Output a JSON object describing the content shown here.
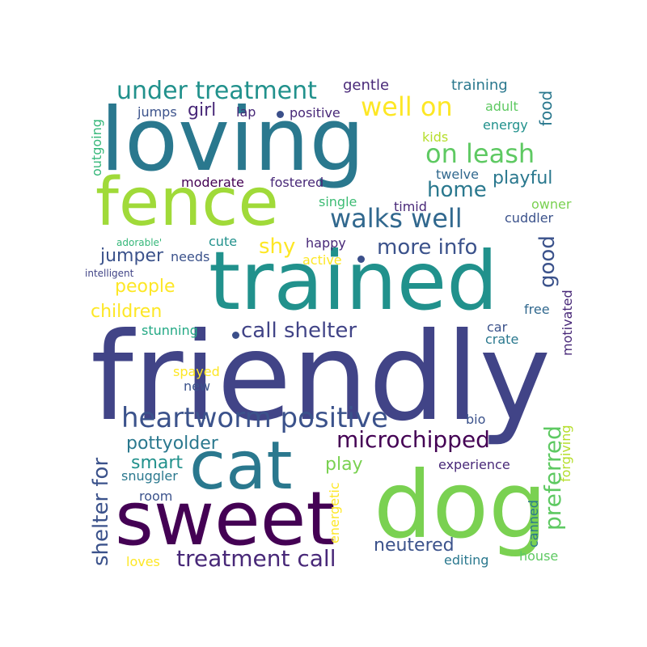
{
  "palette": {
    "dark_purple": "#440154",
    "indigo": "#414487",
    "blue": "#2a788e",
    "teal": "#22a884",
    "green": "#7ad151",
    "yellow": "#fde725"
  },
  "words": [
    {
      "id": "friendly",
      "text": "friendly",
      "color": "#414487",
      "rot": 0
    },
    {
      "id": "loving",
      "text": "loving",
      "color": "#2a788e",
      "rot": 0
    },
    {
      "id": "trained",
      "text": "trained",
      "color": "#21918c",
      "rot": 0
    },
    {
      "id": "fence",
      "text": "fence",
      "color": "#a0da39",
      "rot": 0
    },
    {
      "id": "dog",
      "text": "dog",
      "color": "#7ad151",
      "rot": 0
    },
    {
      "id": "sweet",
      "text": "sweet",
      "color": "#440154",
      "rot": 0
    },
    {
      "id": "cat",
      "text": "cat",
      "color": "#2a788e",
      "rot": 0
    },
    {
      "id": "heartworm-positive",
      "text": "heartworm positive",
      "color": "#3b528b",
      "rot": 0
    },
    {
      "id": "under-treatment",
      "text": "under treatment",
      "color": "#21918c",
      "rot": 0
    },
    {
      "id": "well-on",
      "text": "well on",
      "color": "#fde725",
      "rot": 0
    },
    {
      "id": "on-leash",
      "text": "on leash",
      "color": "#5ec962",
      "rot": 0
    },
    {
      "id": "walks-well",
      "text": "walks well",
      "color": "#31688e",
      "rot": 0
    },
    {
      "id": "call-shelter",
      "text": "call shelter",
      "color": "#414487",
      "rot": 0
    },
    {
      "id": "microchipped",
      "text": "microchipped",
      "color": "#440154",
      "rot": 0
    },
    {
      "id": "treatment-call",
      "text": "treatment call",
      "color": "#482878",
      "rot": 0
    },
    {
      "id": "more-info",
      "text": "more info",
      "color": "#3b528b",
      "rot": 0
    },
    {
      "id": "home",
      "text": "home",
      "color": "#2a788e",
      "rot": 0
    },
    {
      "id": "playful",
      "text": "playful",
      "color": "#2a788e",
      "rot": 0
    },
    {
      "id": "shy",
      "text": "shy",
      "color": "#fde725",
      "rot": 0
    },
    {
      "id": "girl",
      "text": "girl",
      "color": "#482878",
      "rot": 0
    },
    {
      "id": "jumper",
      "text": "jumper",
      "color": "#3b528b",
      "rot": 0
    },
    {
      "id": "people",
      "text": "people",
      "color": "#fde725",
      "rot": 0
    },
    {
      "id": "children",
      "text": "children",
      "color": "#fde725",
      "rot": 0
    },
    {
      "id": "pottyolder",
      "text": "pottyolder",
      "color": "#2a788e",
      "rot": 0
    },
    {
      "id": "smart",
      "text": "smart",
      "color": "#21918c",
      "rot": 0
    },
    {
      "id": "play",
      "text": "play",
      "color": "#7ad151",
      "rot": 0
    },
    {
      "id": "neutered",
      "text": "neutered",
      "color": "#3b528b",
      "rot": 0
    },
    {
      "id": "gentle",
      "text": "gentle",
      "color": "#482878",
      "rot": 0
    },
    {
      "id": "training",
      "text": "training",
      "color": "#2a788e",
      "rot": 0
    },
    {
      "id": "jumps",
      "text": "jumps",
      "color": "#3b528b",
      "rot": 0
    },
    {
      "id": "lap",
      "text": "lap",
      "color": "#482878",
      "rot": 0
    },
    {
      "id": "positive",
      "text": "positive",
      "color": "#482878",
      "rot": 0
    },
    {
      "id": "adult",
      "text": "adult",
      "color": "#5ec962",
      "rot": 0
    },
    {
      "id": "energy",
      "text": "energy",
      "color": "#21918c",
      "rot": 0
    },
    {
      "id": "kids",
      "text": "kids",
      "color": "#b5de2b",
      "rot": 0
    },
    {
      "id": "moderate",
      "text": "moderate",
      "color": "#440154",
      "rot": 0
    },
    {
      "id": "fostered",
      "text": "fostered",
      "color": "#482878",
      "rot": 0
    },
    {
      "id": "twelve",
      "text": "twelve",
      "color": "#31688e",
      "rot": 0
    },
    {
      "id": "single",
      "text": "single",
      "color": "#3dbc74",
      "rot": 0
    },
    {
      "id": "timid",
      "text": "timid",
      "color": "#482878",
      "rot": 0
    },
    {
      "id": "owner",
      "text": "owner",
      "color": "#7ad151",
      "rot": 0
    },
    {
      "id": "cuddler",
      "text": "cuddler",
      "color": "#3b528b",
      "rot": 0
    },
    {
      "id": "adorable",
      "text": "adorable'",
      "color": "#35b779",
      "rot": 0
    },
    {
      "id": "cute",
      "text": "cute",
      "color": "#21918c",
      "rot": 0
    },
    {
      "id": "happy",
      "text": "happy",
      "color": "#482878",
      "rot": 0
    },
    {
      "id": "active",
      "text": "active",
      "color": "#fde725",
      "rot": 0
    },
    {
      "id": "needs",
      "text": "needs",
      "color": "#3b528b",
      "rot": 0
    },
    {
      "id": "intelligent",
      "text": "intelligent",
      "color": "#414487",
      "rot": 0
    },
    {
      "id": "free",
      "text": "free",
      "color": "#31688e",
      "rot": 0
    },
    {
      "id": "stunning",
      "text": "stunning",
      "color": "#22a884",
      "rot": 0
    },
    {
      "id": "car",
      "text": "car",
      "color": "#3b528b",
      "rot": 0
    },
    {
      "id": "crate",
      "text": "crate",
      "color": "#2a788e",
      "rot": 0
    },
    {
      "id": "spayed",
      "text": "spayed",
      "color": "#fde725",
      "rot": 0
    },
    {
      "id": "new",
      "text": "new",
      "color": "#3b528b",
      "rot": 0
    },
    {
      "id": "bio",
      "text": "bio",
      "color": "#3b528b",
      "rot": 0
    },
    {
      "id": "experience",
      "text": "experience",
      "color": "#482878",
      "rot": 0
    },
    {
      "id": "snuggler",
      "text": "snuggler",
      "color": "#2a788e",
      "rot": 0
    },
    {
      "id": "room",
      "text": "room",
      "color": "#3b528b",
      "rot": 0
    },
    {
      "id": "loves",
      "text": "loves",
      "color": "#fde725",
      "rot": 0
    },
    {
      "id": "editing",
      "text": "editing",
      "color": "#2a788e",
      "rot": 0
    },
    {
      "id": "house",
      "text": "house",
      "color": "#5ec962",
      "rot": 0
    },
    {
      "id": "food",
      "text": "food",
      "color": "#2a788e",
      "rot": -90
    },
    {
      "id": "good",
      "text": "good",
      "color": "#3b528b",
      "rot": -90
    },
    {
      "id": "outgoing",
      "text": "outgoing",
      "color": "#35b779",
      "rot": -90
    },
    {
      "id": "shelter-for",
      "text": "shelter for",
      "color": "#3b528b",
      "rot": -90
    },
    {
      "id": "preferred",
      "text": "preferred",
      "color": "#5ec962",
      "rot": -90
    },
    {
      "id": "motivated",
      "text": "motivated",
      "color": "#482878",
      "rot": -90
    },
    {
      "id": "forgiving",
      "text": "forgiving",
      "color": "#b5de2b",
      "rot": -90
    },
    {
      "id": "energetic",
      "text": "energetic",
      "color": "#fde725",
      "rot": -90
    },
    {
      "id": "canned",
      "text": "canned",
      "color": "#2a788e",
      "rot": -90
    }
  ]
}
